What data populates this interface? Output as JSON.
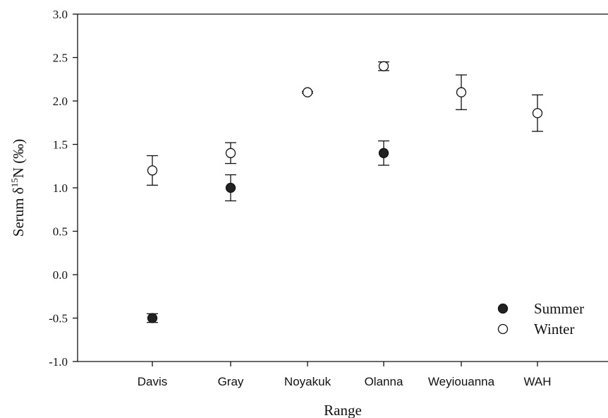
{
  "chart_data": {
    "type": "scatter",
    "xlabel": "Range",
    "ylabel": {
      "prefix": "Serum δ",
      "superscript": "15",
      "suffix": "N (‰)"
    },
    "categories": [
      "Davis",
      "Gray",
      "Noyakuk",
      "Olanna",
      "Weyiouanna",
      "WAH"
    ],
    "ylim": [
      -1.0,
      3.0
    ],
    "yticks": [
      "3.0",
      "2.5",
      "2.0",
      "1.5",
      "1.0",
      "0.5",
      "0.0",
      "-0.5",
      "-1.0"
    ],
    "grid": false,
    "legend_position": "bottom-right",
    "series": [
      {
        "name": "Summer",
        "marker": "filled-circle",
        "color": "#222222",
        "points": [
          {
            "category": "Davis",
            "y": -0.5,
            "err_low": -0.55,
            "err_high": -0.45
          },
          {
            "category": "Gray",
            "y": 1.0,
            "err_low": 0.85,
            "err_high": 1.15
          },
          {
            "category": "Olanna",
            "y": 1.4,
            "err_low": 1.26,
            "err_high": 1.54
          }
        ]
      },
      {
        "name": "Winter",
        "marker": "open-circle",
        "color": "#222222",
        "points": [
          {
            "category": "Davis",
            "y": 1.2,
            "err_low": 1.03,
            "err_high": 1.37
          },
          {
            "category": "Gray",
            "y": 1.4,
            "err_low": 1.28,
            "err_high": 1.52
          },
          {
            "category": "Noyakuk",
            "y": 2.1,
            "err_low": 2.09,
            "err_high": 2.11
          },
          {
            "category": "Olanna",
            "y": 2.4,
            "err_low": 2.35,
            "err_high": 2.45
          },
          {
            "category": "Weyiouanna",
            "y": 2.1,
            "err_low": 1.9,
            "err_high": 2.3
          },
          {
            "category": "WAH",
            "y": 1.86,
            "err_low": 1.65,
            "err_high": 2.07
          }
        ]
      }
    ]
  }
}
